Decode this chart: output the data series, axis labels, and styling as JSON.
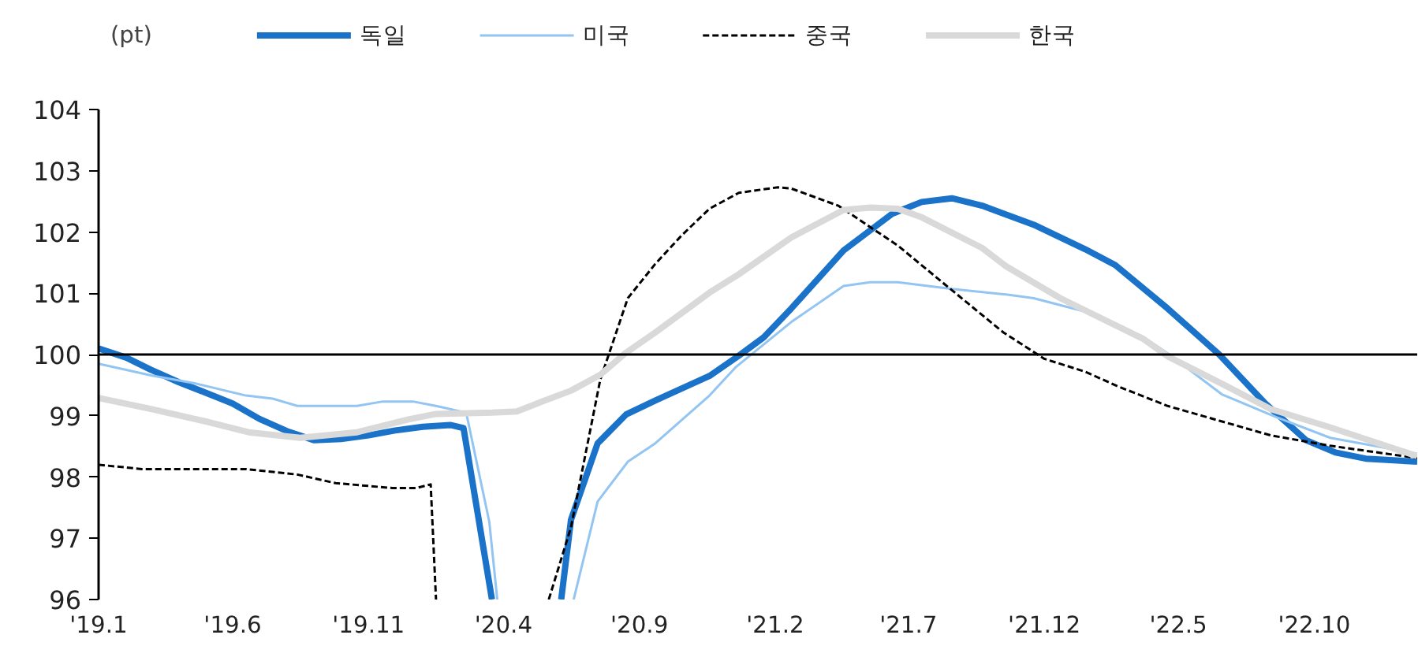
{
  "chart_data": {
    "type": "line",
    "ylabel": "(pt)",
    "xlim": [
      "2019-01-01",
      "2023-01-25"
    ],
    "ylim": [
      96,
      104
    ],
    "xticks": [
      {
        "value": "2019-01",
        "label": "'19.1"
      },
      {
        "value": "2019-06",
        "label": "'19.6"
      },
      {
        "value": "2019-11",
        "label": "'19.11"
      },
      {
        "value": "2020-04",
        "label": "'20.4"
      },
      {
        "value": "2020-09",
        "label": "'20.9"
      },
      {
        "value": "2021-02",
        "label": "'21.2"
      },
      {
        "value": "2021-07",
        "label": "'21.7"
      },
      {
        "value": "2021-12",
        "label": "'21.12"
      },
      {
        "value": "2022-05",
        "label": "'22.5"
      },
      {
        "value": "2022-10",
        "label": "'22.10"
      }
    ],
    "yticks": [
      96,
      97,
      98,
      99,
      100,
      101,
      102,
      103,
      104
    ],
    "legend": "top",
    "marker": "none",
    "ref_lines": [
      {
        "axis": "y",
        "value": 100,
        "color": "#000000",
        "line_style": "solid"
      }
    ],
    "series": [
      {
        "name": "독일",
        "color": "#1a73c8",
        "line_style": "solid",
        "x": [
          "2019-01-01",
          "2019-02-01",
          "2019-03-01",
          "2019-04-01",
          "2019-05-01",
          "2019-06-01",
          "2019-07-01",
          "2019-08-01",
          "2019-09-01",
          "2019-10-01",
          "2019-11-01",
          "2019-12-01",
          "2020-01-01",
          "2020-02-01",
          "2020-02-16",
          "2020-03-19",
          null,
          "2020-06-05",
          "2020-06-16",
          "2020-07-16",
          "2020-08-17",
          "2020-09-19",
          "2020-11-19",
          "2020-12-22",
          "2021-01-19",
          "2021-02-19",
          "2021-04-19",
          "2021-06-13",
          "2021-07-16",
          "2021-08-19",
          "2021-09-22",
          "2021-11-19",
          "2022-01-16",
          "2022-02-19",
          "2022-04-19",
          "2022-06-16",
          "2022-08-07",
          "2022-09-22",
          "2022-10-25",
          "2022-11-28",
          "2023-01-25"
        ],
        "values": [
          100.1,
          99.95,
          99.75,
          99.55,
          99.38,
          99.2,
          98.95,
          98.75,
          98.6,
          98.62,
          98.68,
          98.76,
          98.82,
          98.85,
          98.8,
          96,
          null,
          96,
          97.3,
          98.55,
          99.02,
          99.25,
          99.65,
          99.98,
          100.28,
          100.75,
          101.7,
          102.3,
          102.49,
          102.55,
          102.43,
          102.12,
          101.72,
          101.46,
          100.75,
          100,
          99.2,
          98.6,
          98.4,
          98.3,
          98.25
        ]
      },
      {
        "name": "미국",
        "color": "#93c5f2",
        "line_style": "solid",
        "x": [
          "2019-01-01",
          "2019-03-01",
          "2019-04-19",
          "2019-06-16",
          "2019-07-16",
          "2019-08-13",
          "2019-10-19",
          "2019-11-16",
          "2019-12-22",
          "2020-01-16",
          "2020-02-19",
          "2020-03-16",
          "2020-03-25",
          null,
          "2020-06-19",
          "2020-07-16",
          "2020-08-19",
          "2020-09-19",
          "2020-11-19",
          "2020-12-19",
          "2021-02-19",
          "2021-04-19",
          "2021-05-19",
          "2021-06-19",
          "2021-08-19",
          "2021-10-19",
          "2021-11-19",
          "2022-01-16",
          "2022-03-22",
          "2022-04-19",
          "2022-06-19",
          "2022-08-19",
          "2022-10-19",
          "2023-01-25"
        ],
        "values": [
          99.85,
          99.66,
          99.53,
          99.33,
          99.28,
          99.16,
          99.16,
          99.23,
          99.23,
          99.16,
          99.05,
          97.27,
          96,
          null,
          96,
          97.6,
          98.25,
          98.55,
          99.33,
          99.8,
          100.53,
          101.12,
          101.18,
          101.18,
          101.07,
          100.98,
          100.92,
          100.7,
          100.29,
          100.02,
          99.35,
          98.98,
          98.64,
          98.38
        ]
      },
      {
        "name": "중국",
        "color": "#000000",
        "line_style": "dashed",
        "x": [
          "2019-01-01",
          "2019-02-19",
          "2019-06-16",
          "2019-08-13",
          "2019-09-25",
          "2019-11-28",
          "2019-12-25",
          "2020-01-10",
          "2020-01-16",
          null,
          "2020-05-22",
          "2020-06-16",
          "2020-07-19",
          "2020-08-19",
          "2020-09-19",
          "2020-10-19",
          "2020-11-19",
          "2020-12-22",
          "2021-02-04",
          "2021-02-19",
          "2021-04-13",
          "2021-06-19",
          "2021-08-19",
          "2021-10-16",
          "2021-12-01",
          "2022-01-16",
          "2022-02-22",
          "2022-04-19",
          "2022-06-16",
          "2022-08-13",
          "2022-10-19",
          "2023-01-25"
        ],
        "values": [
          98.2,
          98.13,
          98.13,
          98.04,
          97.9,
          97.82,
          97.82,
          97.88,
          96,
          null,
          96,
          97.18,
          99.59,
          100.92,
          101.48,
          101.95,
          102.38,
          102.64,
          102.73,
          102.71,
          102.43,
          101.78,
          101.05,
          100.36,
          99.93,
          99.72,
          99.48,
          99.16,
          98.92,
          98.68,
          98.51,
          98.31
        ]
      },
      {
        "name": "한국",
        "color": "#d9d9d9",
        "line_style": "solid",
        "x": [
          "2019-01-01",
          "2019-03-01",
          "2019-05-04",
          "2019-06-19",
          "2019-08-16",
          "2019-10-19",
          "2019-12-16",
          "2020-01-16",
          "2020-03-19",
          "2020-04-16",
          "2020-05-16",
          "2020-06-16",
          "2020-07-19",
          "2020-08-16",
          "2020-09-19",
          "2020-11-19",
          "2020-12-22",
          "2021-02-19",
          "2021-04-19",
          "2021-05-19",
          "2021-06-19",
          "2021-07-16",
          "2021-09-22",
          "2021-10-19",
          "2021-12-19",
          "2022-03-22",
          "2022-04-19",
          "2022-06-22",
          "2022-08-13",
          "2022-10-19",
          "2023-01-25"
        ],
        "values": [
          99.29,
          99.11,
          98.9,
          98.73,
          98.64,
          98.73,
          98.94,
          99.03,
          99.05,
          99.07,
          99.24,
          99.41,
          99.67,
          100.02,
          100.36,
          101.01,
          101.31,
          101.91,
          102.36,
          102.4,
          102.38,
          102.24,
          101.74,
          101.44,
          100.92,
          100.26,
          99.97,
          99.5,
          99.11,
          98.81,
          98.34
        ]
      }
    ]
  }
}
